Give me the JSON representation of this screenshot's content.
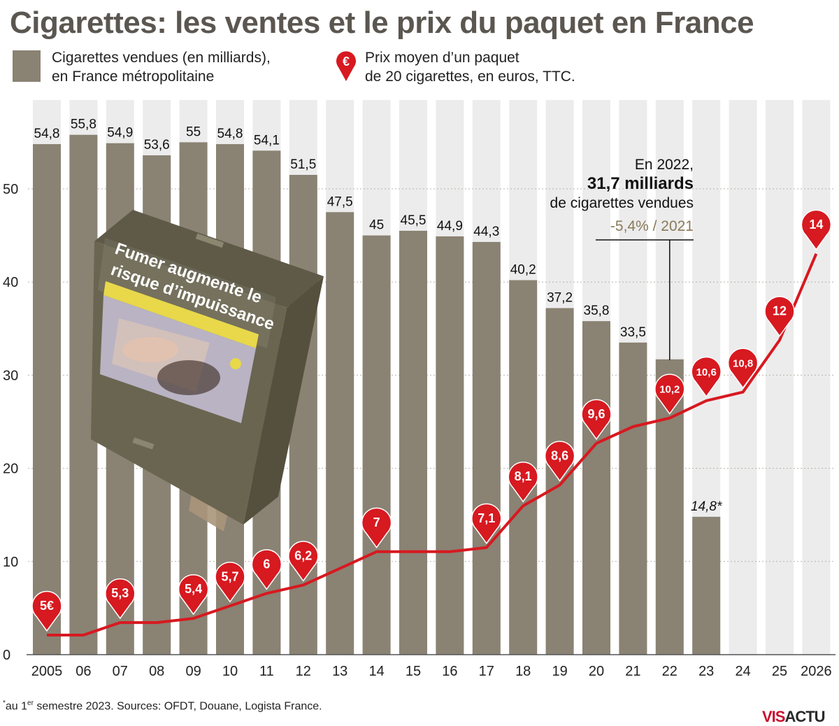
{
  "title": "Cigarettes: les ventes et le prix du paquet en France",
  "legend": {
    "bars_line1": "Cigarettes vendues (en milliards),",
    "bars_line2": "en France métropolitaine",
    "price_line1": "Prix moyen d’un paquet",
    "price_line2": "de 20 cigarettes, en euros, TTC.",
    "price_icon": "euro-pin-icon"
  },
  "annotation": {
    "line1": "En 2022,",
    "line2": "31,7 milliards",
    "line3": "de cigarettes vendues",
    "line4": "-5,4% / 2021"
  },
  "pack": {
    "warning_line1": "Fumer augmente le",
    "warning_line2": "risque d’impuissance"
  },
  "footnote": {
    "prefix": "au 1",
    "sup": "er",
    "rest": " semestre 2023. Sources: OFDT, Douane, Logista France."
  },
  "logo": {
    "part1": "VIS",
    "part2": "ACTU"
  },
  "colors": {
    "bar": "#8a8273",
    "empty_bar": "#ececec",
    "price": "#d71920",
    "accent_text": "#8a7a5a"
  },
  "chart_data": {
    "type": "bar",
    "x_tick_labels": [
      "2005",
      "06",
      "07",
      "08",
      "09",
      "10",
      "11",
      "12",
      "13",
      "14",
      "15",
      "16",
      "17",
      "18",
      "19",
      "20",
      "21",
      "22",
      "23",
      "24",
      "25",
      "2026"
    ],
    "y_ticks": [
      "0",
      "10",
      "20",
      "30",
      "40",
      "50"
    ],
    "ylim": [
      0,
      58
    ],
    "series": [
      {
        "name": "Cigarettes vendues (en milliards), en France métropolitaine",
        "values": [
          54.8,
          55.8,
          54.9,
          53.6,
          55,
          54.8,
          54.1,
          51.5,
          47.5,
          45,
          45.5,
          44.9,
          44.3,
          40.2,
          37.2,
          35.8,
          33.5,
          31.7,
          14.8,
          null,
          null,
          null
        ],
        "labels": [
          "54,8",
          "55,8",
          "54,9",
          "53,6",
          "55",
          "54,8",
          "54,1",
          "51,5",
          "47,5",
          "45",
          "45,5",
          "44,9",
          "44,3",
          "40,2",
          "37,2",
          "35,8",
          "33,5",
          "",
          "14,8*",
          "",
          "",
          ""
        ]
      },
      {
        "name": "Prix moyen d’un paquet de 20 cigarettes, en euros, TTC.",
        "type": "line",
        "values": [
          5,
          5,
          5.3,
          5.3,
          5.4,
          5.7,
          6,
          6.2,
          6.6,
          7,
          7,
          7,
          7.1,
          8.1,
          8.6,
          9.6,
          10,
          10.2,
          10.6,
          10.8,
          12,
          14
        ],
        "pin_labels": [
          "5€",
          "",
          "5,3",
          "",
          "5,4",
          "5,7",
          "6",
          "6,2",
          "",
          "7",
          "",
          "",
          "7,1",
          "8,1",
          "8,6",
          "9,6",
          "",
          "10,2",
          "10,6",
          "10,8",
          "12",
          "14"
        ]
      }
    ]
  }
}
